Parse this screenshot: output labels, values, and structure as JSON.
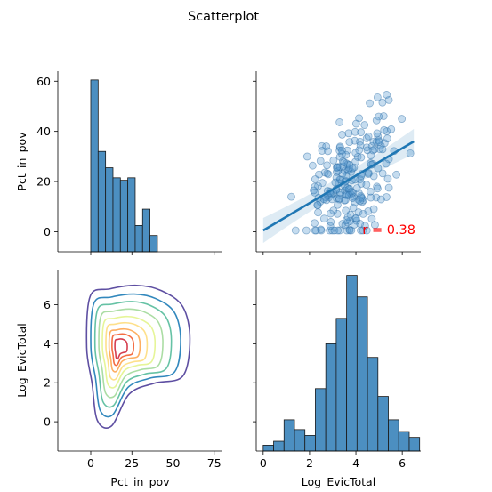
{
  "figure": {
    "title": "Scatterplot"
  },
  "chart_data": [
    {
      "panel": "top-left",
      "type": "bar",
      "subtype": "histogram",
      "color": "#4c8fc1",
      "ylabel": "Pct_in_pov",
      "xlim": [
        -20,
        80
      ],
      "ylim": [
        -8,
        64
      ],
      "xticks": [
        0,
        25,
        50,
        75
      ],
      "yticks": [
        0,
        20,
        40,
        60
      ],
      "show_x_tick_labels": false,
      "show_y_tick_labels": true,
      "bins": [
        {
          "x0": 0,
          "x1": 4.5,
          "value": 60.5
        },
        {
          "x0": 4.5,
          "x1": 9.0,
          "value": 32
        },
        {
          "x0": 9.0,
          "x1": 13.5,
          "value": 25.5
        },
        {
          "x0": 13.5,
          "x1": 18.0,
          "value": 21.5
        },
        {
          "x0": 18.0,
          "x1": 22.5,
          "value": 20.5
        },
        {
          "x0": 22.5,
          "x1": 27.0,
          "value": 21.5
        },
        {
          "x0": 27.0,
          "x1": 31.5,
          "value": 2.5
        },
        {
          "x0": 31.5,
          "x1": 36.0,
          "value": 9
        },
        {
          "x0": 36.0,
          "x1": 40.5,
          "value": -1.5
        }
      ]
    },
    {
      "panel": "top-right",
      "type": "scatter",
      "color": "#1f77b4",
      "xlim": [
        -0.3,
        6.8
      ],
      "ylim": [
        -8,
        64
      ],
      "xticks": [
        0,
        2,
        4,
        6
      ],
      "yticks": [
        0,
        20,
        40,
        60
      ],
      "show_x_tick_labels": false,
      "show_y_tick_labels": false,
      "annotation": "r = 0.38",
      "annotation_color": "#ff0000",
      "regression": {
        "x0": 0,
        "y0": 0.5,
        "x1": 6.5,
        "y1": 36,
        "ci_halfwidth_ends": 5
      },
      "seed": 7,
      "n_points": 230
    },
    {
      "panel": "bottom-left",
      "type": "heatmap",
      "subtype": "kde-contour",
      "xlabel": "Pct_in_pov",
      "ylabel": "Log_EvicTotal",
      "xlim": [
        -20,
        80
      ],
      "ylim": [
        -1.5,
        7.8
      ],
      "xticks": [
        0,
        25,
        50,
        75
      ],
      "yticks": [
        0,
        2,
        4,
        6
      ],
      "show_x_tick_labels": true,
      "show_y_tick_labels": true,
      "center": [
        17,
        3.8
      ],
      "levels": [
        {
          "color": "#5e4fa2",
          "rx": 1.0,
          "ry": 1.0
        },
        {
          "color": "#3288bd",
          "rx": 0.87,
          "ry": 0.86
        },
        {
          "color": "#66c2a5",
          "rx": 0.74,
          "ry": 0.74
        },
        {
          "color": "#abdda4",
          "rx": 0.62,
          "ry": 0.62
        },
        {
          "color": "#e6f598",
          "rx": 0.51,
          "ry": 0.5
        },
        {
          "color": "#fee08b",
          "rx": 0.4,
          "ry": 0.4
        },
        {
          "color": "#fdae61",
          "rx": 0.3,
          "ry": 0.3
        },
        {
          "color": "#f46d43",
          "rx": 0.21,
          "ry": 0.22
        },
        {
          "color": "#d53e4f",
          "rx": 0.12,
          "ry": 0.14
        }
      ]
    },
    {
      "panel": "bottom-right",
      "type": "bar",
      "subtype": "histogram",
      "color": "#4c8fc1",
      "xlabel": "Log_EvicTotal",
      "xlim": [
        -0.3,
        6.8
      ],
      "ylim": [
        -1.5,
        7.8
      ],
      "xticks": [
        0,
        2,
        4,
        6
      ],
      "yticks": [
        0,
        2,
        4,
        6
      ],
      "show_x_tick_labels": true,
      "show_y_tick_labels": false,
      "bins": [
        {
          "x0": 0.0,
          "x1": 0.45,
          "value": -1.2
        },
        {
          "x0": 0.45,
          "x1": 0.9,
          "value": -1.0
        },
        {
          "x0": 0.9,
          "x1": 1.35,
          "value": 0.1
        },
        {
          "x0": 1.35,
          "x1": 1.8,
          "value": -0.4
        },
        {
          "x0": 1.8,
          "x1": 2.25,
          "value": -0.7
        },
        {
          "x0": 2.25,
          "x1": 2.7,
          "value": 1.7
        },
        {
          "x0": 2.7,
          "x1": 3.15,
          "value": 4.0
        },
        {
          "x0": 3.15,
          "x1": 3.6,
          "value": 5.3
        },
        {
          "x0": 3.6,
          "x1": 4.05,
          "value": 7.5
        },
        {
          "x0": 4.05,
          "x1": 4.5,
          "value": 6.4
        },
        {
          "x0": 4.5,
          "x1": 4.95,
          "value": 3.3
        },
        {
          "x0": 4.95,
          "x1": 5.4,
          "value": 1.3
        },
        {
          "x0": 5.4,
          "x1": 5.85,
          "value": 0.1
        },
        {
          "x0": 5.85,
          "x1": 6.3,
          "value": -0.5
        },
        {
          "x0": 6.3,
          "x1": 6.75,
          "value": -0.8
        }
      ]
    }
  ]
}
